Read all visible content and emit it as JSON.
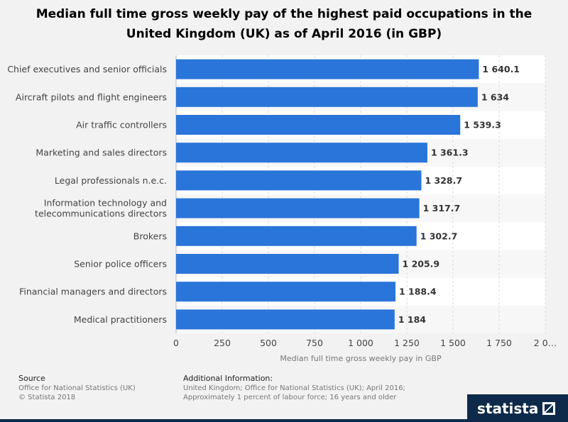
{
  "chart_data": {
    "type": "bar",
    "orientation": "horizontal",
    "title": "Median full time gross weekly pay of the highest paid occupations in the United Kingdom (UK) as of April 2016 (in GBP)",
    "categories": [
      "Chief executives and senior officials",
      "Aircraft pilots and flight engineers",
      "Air traffic controllers",
      "Marketing and sales directors",
      "Legal professionals n.e.c.",
      "Information technology and telecommunications directors",
      "Brokers",
      "Senior police officers",
      "Financial managers and directors",
      "Medical practitioners"
    ],
    "category_lines": [
      [
        "Chief executives and senior officials"
      ],
      [
        "Aircraft pilots and flight engineers"
      ],
      [
        "Air traffic controllers"
      ],
      [
        "Marketing and sales directors"
      ],
      [
        "Legal professionals n.e.c."
      ],
      [
        "Information technology and",
        "telecommunications directors"
      ],
      [
        "Brokers"
      ],
      [
        "Senior police officers"
      ],
      [
        "Financial managers and directors"
      ],
      [
        "Medical practitioners"
      ]
    ],
    "values": [
      1640.1,
      1634,
      1539.3,
      1361.3,
      1328.7,
      1317.7,
      1302.7,
      1205.9,
      1188.4,
      1184
    ],
    "value_labels": [
      "1 640.1",
      "1 634",
      "1 539.3",
      "1 361.3",
      "1 328.7",
      "1 317.7",
      "1 302.7",
      "1 205.9",
      "1 188.4",
      "1 184"
    ],
    "xlabel": "Median full time gross weekly pay in GBP",
    "ylabel": "",
    "xlim": [
      0,
      2000
    ],
    "ticks": [
      0,
      250,
      500,
      750,
      1000,
      1250,
      1500,
      1750,
      2000
    ],
    "tick_labels": [
      "0",
      "250",
      "500",
      "750",
      "1 000",
      "1 250",
      "1 500",
      "1 750",
      "2 0…"
    ],
    "grid": true,
    "bar_color": "#2a75d9"
  },
  "footer": {
    "source_heading": "Source",
    "source_line1": "Office for National Statistics (UK)",
    "source_line2": "© Statista 2018",
    "info_heading": "Additional Information:",
    "info_line1": "United Kingdom; Office for National Statistics (UK); April 2016;",
    "info_line2": "Approximately 1 percent of labour force; 16 years and older"
  },
  "brand": {
    "name": "statista"
  }
}
